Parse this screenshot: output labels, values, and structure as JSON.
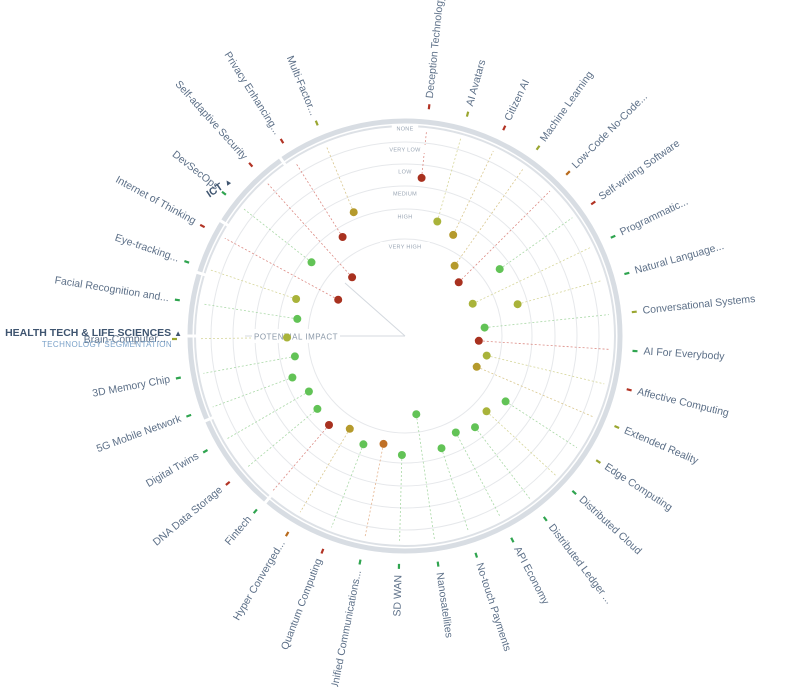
{
  "center_label": "POTENTIAL IMPACT",
  "segment_main": {
    "title": "HEALTH TECH & LIFE SCIENCES",
    "subtitle": "TECHNOLOGY SEGMENTATION",
    "arrow": "▲"
  },
  "segment_other": {
    "title": "ICT",
    "arrow": "▲"
  },
  "colors": {
    "low": "#2fa44f",
    "medium": "#9aa630",
    "high": "#b86a1c",
    "very_high": "#b23324",
    "dot_green": "#62c356",
    "dot_olive": "#a9b33a",
    "dot_darkolive": "#b59a2c",
    "dot_orange": "#c07025",
    "dot_red": "#a8311f",
    "ring": "#e6e8eb",
    "outer_ring": "#d8dde3"
  },
  "chart_data": {
    "type": "radial",
    "rings": [
      "NONE",
      "VERY LOW",
      "LOW",
      "MEDIUM",
      "HIGH",
      "VERY HIGH"
    ],
    "technologies": [
      {
        "name": "Deception Technology",
        "impact": "LOW",
        "tick": "red",
        "dot": "red"
      },
      {
        "name": "AI Avatars",
        "impact": "HIGH",
        "tick": "olive",
        "dot": "olive"
      },
      {
        "name": "Citizen AI",
        "impact": "HIGH",
        "tick": "red",
        "dot": "darkolive"
      },
      {
        "name": "Machine Learning",
        "impact": "VERY HIGH",
        "tick": "olive",
        "dot": "darkolive"
      },
      {
        "name": "Low-Code No-Code...",
        "impact": "VERY HIGH",
        "tick": "orange",
        "dot": "red"
      },
      {
        "name": "Self-writing Software",
        "impact": "HIGH",
        "tick": "red",
        "dot": "green"
      },
      {
        "name": "Programmatic...",
        "impact": "VERY HIGH",
        "tick": "green",
        "dot": "olive"
      },
      {
        "name": "Natural Language...",
        "impact": "HIGH",
        "tick": "green",
        "dot": "olive"
      },
      {
        "name": "Conversational Systems",
        "impact": "VERY HIGH",
        "tick": "olive",
        "dot": "green"
      },
      {
        "name": "AI For Everybody",
        "impact": "VERY HIGH",
        "tick": "green",
        "dot": "red"
      },
      {
        "name": "Affective Computing",
        "impact": "VERY HIGH",
        "tick": "red",
        "dot": "olive"
      },
      {
        "name": "Extended Reality",
        "impact": "VERY HIGH",
        "tick": "olive",
        "dot": "darkolive"
      },
      {
        "name": "Edge Computing",
        "impact": "HIGH",
        "tick": "olive",
        "dot": "green"
      },
      {
        "name": "Distributed Cloud",
        "impact": "HIGH",
        "tick": "green",
        "dot": "olive"
      },
      {
        "name": "Distributed Ledger ...",
        "impact": "HIGH",
        "tick": "green",
        "dot": "green"
      },
      {
        "name": "API Economy",
        "impact": "HIGH",
        "tick": "green",
        "dot": "green"
      },
      {
        "name": "No-touch Payments",
        "impact": "HIGH",
        "tick": "green",
        "dot": "green"
      },
      {
        "name": "Nanosatellites",
        "impact": "VERY HIGH",
        "tick": "green",
        "dot": "green"
      },
      {
        "name": "SD WAN",
        "impact": "HIGH",
        "tick": "green",
        "dot": "green"
      },
      {
        "name": "Unified Communications...",
        "impact": "HIGH",
        "tick": "green",
        "dot": "orange"
      },
      {
        "name": "Quantum Computing",
        "impact": "HIGH",
        "tick": "red",
        "dot": "green"
      },
      {
        "name": "Hyper Converged...",
        "impact": "HIGH",
        "tick": "orange",
        "dot": "darkolive"
      },
      {
        "name": "Fintech",
        "impact": "HIGH",
        "tick": "green",
        "dot": "red"
      },
      {
        "name": "DNA Data Storage",
        "impact": "HIGH",
        "tick": "red",
        "dot": "green"
      },
      {
        "name": "Digital Twins",
        "impact": "HIGH",
        "tick": "green",
        "dot": "green"
      },
      {
        "name": "5G Mobile Network",
        "impact": "HIGH",
        "tick": "green",
        "dot": "green"
      },
      {
        "name": "3D Memory Chip",
        "impact": "HIGH",
        "tick": "green",
        "dot": "green"
      },
      {
        "name": "Brain-Computer...",
        "impact": "HIGH",
        "tick": "olive",
        "dot": "olive"
      },
      {
        "name": "Facial Recognition and...",
        "impact": "HIGH",
        "tick": "green",
        "dot": "green"
      },
      {
        "name": "Eye-tracking...",
        "impact": "HIGH",
        "tick": "green",
        "dot": "olive"
      },
      {
        "name": "Internet of Thinking",
        "impact": "VERY HIGH",
        "tick": "red",
        "dot": "red"
      },
      {
        "name": "DevSecOps",
        "impact": "HIGH",
        "tick": "green",
        "dot": "green"
      },
      {
        "name": "Self-adaptive Security",
        "impact": "VERY HIGH",
        "tick": "red",
        "dot": "red"
      },
      {
        "name": "Privacy Enhancing...",
        "impact": "HIGH",
        "tick": "red",
        "dot": "red"
      },
      {
        "name": "Multi-Factor...",
        "impact": "MEDIUM",
        "tick": "olive",
        "dot": "darkolive"
      }
    ]
  }
}
